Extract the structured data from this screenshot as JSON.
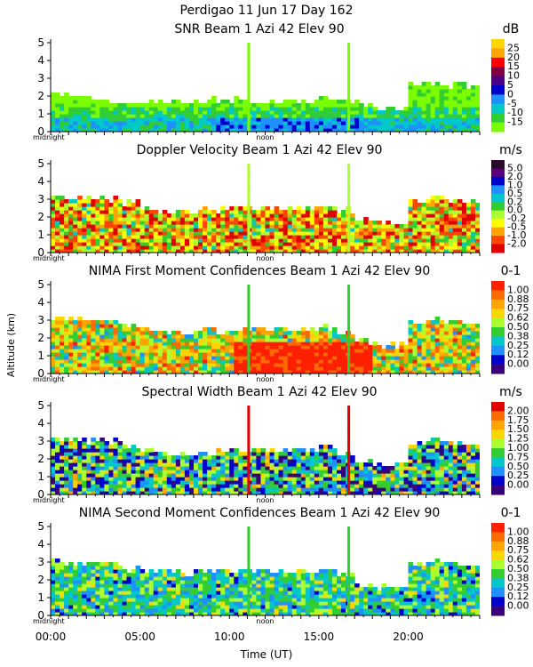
{
  "header": {
    "line1": "Perdigao  11 Jun 17 Day 162"
  },
  "shared_axes": {
    "ylabel": "Altitude (km)",
    "xlabel": "Time (UT)",
    "x_tick_labels": [
      "00:00",
      "05:00",
      "10:00",
      "15:00",
      "20:00"
    ],
    "x_tick_values_h": [
      0,
      5,
      10,
      15,
      20
    ],
    "xlim_h": [
      0,
      24
    ],
    "panel_markers": {
      "left": "midnight",
      "mid": "noon",
      "mid_value_h": 12
    },
    "ylim_km": [
      0,
      5.2
    ],
    "y_ticks": [
      0,
      1,
      2,
      3,
      4,
      5
    ]
  },
  "chart_data": [
    {
      "type": "heatmap",
      "title": "SNR Beam 1 Azi  42 Elev 90",
      "unit": "dB",
      "colorbar_labels": [
        "25",
        "20",
        "15",
        "10",
        "5",
        "0",
        "-5",
        "-10",
        "-15"
      ],
      "colors": [
        "#ffd700",
        "#ffa500",
        "#ff0000",
        "#800040",
        "#4b0082",
        "#0000cd",
        "#1e90ff",
        "#00c8c8",
        "#32cd32",
        "#7cfc00"
      ],
      "cloud_top_km": [
        2.0,
        2.0,
        1.8,
        1.6,
        1.5,
        1.5,
        1.6,
        1.6,
        1.6,
        1.7,
        1.7,
        1.6,
        1.6,
        1.6,
        1.6,
        1.7,
        1.6,
        1.5,
        1.3,
        1.2,
        2.6,
        2.6,
        2.5,
        2.5
      ]
    },
    {
      "type": "heatmap",
      "title": "Doppler Velocity Beam 1 Azi  42 Elev 90",
      "unit": "m/s",
      "colorbar_labels": [
        "5.0",
        "2.0",
        "1.0",
        "0.5",
        "0.2",
        "0.0",
        "-0.2",
        "-0.5",
        "-1.0",
        "-2.0"
      ],
      "colors": [
        "#2a0a2a",
        "#5a007a",
        "#0000cd",
        "#1e90ff",
        "#00c8c8",
        "#32cd32",
        "#adff2f",
        "#ffff00",
        "#ffa500",
        "#ff4500",
        "#e00000"
      ],
      "cloud_top_km": [
        3.0,
        3.0,
        2.9,
        2.9,
        2.7,
        2.4,
        2.2,
        2.2,
        2.3,
        2.3,
        2.4,
        2.4,
        2.4,
        2.4,
        2.4,
        2.5,
        2.3,
        1.8,
        1.6,
        1.6,
        2.8,
        3.0,
        2.8,
        2.8
      ]
    },
    {
      "type": "heatmap",
      "title": "NIMA First Moment Confidences Beam 1 Azi  42 Elev 90",
      "unit": "0-1",
      "colorbar_labels": [
        "1.00",
        "0.88",
        "0.75",
        "0.62",
        "0.50",
        "0.38",
        "0.25",
        "0.12",
        "0.00"
      ],
      "colors": [
        "#ff2000",
        "#ff6a00",
        "#ffa500",
        "#ffd700",
        "#adff2f",
        "#32cd32",
        "#00c8c8",
        "#1e90ff",
        "#0000cd",
        "#3a007a"
      ],
      "cloud_top_km": [
        3.0,
        3.0,
        2.9,
        2.9,
        2.6,
        2.4,
        2.2,
        2.2,
        2.3,
        2.3,
        2.4,
        2.4,
        2.4,
        2.4,
        2.4,
        2.5,
        2.2,
        1.7,
        1.5,
        1.5,
        2.8,
        3.0,
        2.8,
        2.8
      ]
    },
    {
      "type": "heatmap",
      "title": "Spectral Width Beam 1 Azi  42 Elev 90",
      "unit": "m/s",
      "colorbar_labels": [
        "2.00",
        "1.75",
        "1.50",
        "1.25",
        "1.00",
        "0.75",
        "0.50",
        "0.25",
        "0.00"
      ],
      "colors": [
        "#e00000",
        "#ff6a00",
        "#ffa500",
        "#ffd700",
        "#adff2f",
        "#32cd32",
        "#00c8c8",
        "#1e90ff",
        "#0000cd",
        "#3a007a"
      ],
      "cloud_top_km": [
        3.0,
        3.0,
        2.9,
        2.9,
        2.6,
        2.3,
        2.2,
        2.2,
        2.3,
        2.3,
        2.4,
        2.4,
        2.4,
        2.4,
        2.4,
        2.6,
        2.2,
        1.8,
        1.6,
        1.6,
        2.8,
        3.0,
        2.8,
        2.8
      ]
    },
    {
      "type": "heatmap",
      "title": "NIMA Second Moment Confidences Beam 1 Azi  42 Elev 90",
      "unit": "0-1",
      "colorbar_labels": [
        "1.00",
        "0.88",
        "0.75",
        "0.62",
        "0.50",
        "0.38",
        "0.25",
        "0.12",
        "0.00"
      ],
      "colors": [
        "#ff2000",
        "#ff6a00",
        "#ffa500",
        "#ffd700",
        "#adff2f",
        "#32cd32",
        "#00c8c8",
        "#1e90ff",
        "#0000cd",
        "#3a007a"
      ],
      "cloud_top_km": [
        2.9,
        2.9,
        2.8,
        2.8,
        2.5,
        2.4,
        2.3,
        2.3,
        2.4,
        2.4,
        2.4,
        2.4,
        2.4,
        2.4,
        2.4,
        2.5,
        2.2,
        1.7,
        1.5,
        1.5,
        2.8,
        3.0,
        2.8,
        2.8
      ]
    }
  ]
}
